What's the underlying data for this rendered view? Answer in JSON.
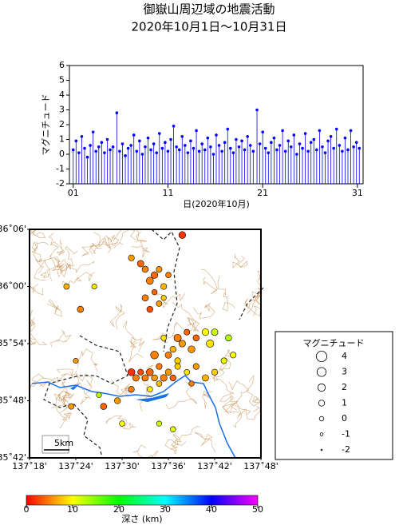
{
  "chart_data": [
    {
      "type": "stem",
      "title": "御嶽山周辺域の地震活動",
      "subtitle": "2020年10月1日～10月31日",
      "xlabel": "日(2020年10月)",
      "ylabel": "マグニチュード",
      "color": "#0000ff",
      "xlim": [
        0.6,
        31.6
      ],
      "xticks": [
        {
          "value": 1,
          "label": "01"
        },
        11,
        21,
        31
      ],
      "ylim": [
        -2,
        6
      ],
      "yticks": [
        -2,
        -1,
        0,
        1,
        2,
        3,
        4,
        5,
        6
      ],
      "x": [
        1.0,
        1.3,
        1.6,
        1.9,
        2.2,
        2.5,
        2.8,
        3.1,
        3.4,
        3.7,
        4.0,
        4.3,
        4.6,
        4.9,
        5.2,
        5.6,
        5.9,
        6.2,
        6.5,
        6.8,
        7.1,
        7.4,
        7.7,
        8.0,
        8.3,
        8.6,
        8.9,
        9.2,
        9.5,
        9.8,
        10.1,
        10.4,
        10.7,
        11.0,
        11.3,
        11.6,
        11.9,
        12.2,
        12.5,
        12.8,
        13.1,
        13.4,
        13.7,
        14.0,
        14.3,
        14.6,
        14.9,
        15.2,
        15.5,
        15.8,
        16.1,
        16.4,
        16.7,
        17.0,
        17.3,
        17.6,
        17.9,
        18.2,
        18.5,
        18.8,
        19.1,
        19.4,
        19.7,
        20.0,
        20.4,
        20.7,
        21.0,
        21.3,
        21.6,
        21.9,
        22.2,
        22.5,
        22.8,
        23.1,
        23.4,
        23.7,
        24.0,
        24.3,
        24.6,
        24.9,
        25.2,
        25.5,
        25.8,
        26.1,
        26.4,
        26.7,
        27.0,
        27.3,
        27.6,
        27.9,
        28.2,
        28.5,
        28.8,
        29.1,
        29.4,
        29.7,
        30.0,
        30.3,
        30.6,
        30.9,
        31.2
      ],
      "values": [
        0.3,
        0.9,
        0.1,
        1.2,
        0.4,
        -0.2,
        0.6,
        1.5,
        0.2,
        0.5,
        0.8,
        0.1,
        1.0,
        0.3,
        0.5,
        2.8,
        0.2,
        0.7,
        -0.1,
        0.4,
        0.6,
        1.3,
        0.2,
        0.9,
        0.0,
        0.5,
        1.1,
        0.3,
        0.7,
        0.1,
        1.4,
        0.4,
        0.8,
        0.2,
        1.0,
        1.9,
        0.5,
        0.3,
        1.2,
        0.6,
        0.1,
        0.9,
        0.4,
        1.6,
        0.2,
        0.7,
        0.3,
        1.1,
        0.5,
        0.0,
        1.3,
        0.6,
        0.2,
        0.8,
        1.7,
        0.4,
        0.1,
        1.0,
        0.5,
        0.9,
        0.3,
        1.2,
        0.6,
        0.2,
        3.0,
        0.7,
        1.5,
        0.4,
        0.1,
        0.8,
        1.1,
        0.3,
        0.6,
        1.6,
        0.2,
        0.9,
        0.5,
        1.3,
        0.0,
        0.7,
        0.4,
        1.4,
        0.2,
        0.8,
        1.0,
        0.3,
        1.6,
        0.5,
        0.1,
        0.9,
        1.2,
        0.4,
        1.7,
        0.6,
        0.2,
        1.1,
        0.3,
        1.6,
        0.5,
        0.8,
        0.4
      ]
    },
    {
      "type": "epicenter_map",
      "xlim": [
        137.3,
        137.8
      ],
      "xticks": [
        {
          "value": 137.3,
          "label": "137˚18'"
        },
        {
          "value": 137.4,
          "label": "137˚24'"
        },
        {
          "value": 137.5,
          "label": "137˚30'"
        },
        {
          "value": 137.6,
          "label": "137˚36'"
        },
        {
          "value": 137.7,
          "label": "137˚42'"
        },
        {
          "value": 137.8,
          "label": "137˚48'"
        }
      ],
      "ylim": [
        35.7,
        36.1
      ],
      "yticks": [
        {
          "value": 35.7,
          "label": "35˚42'"
        },
        {
          "value": 35.8,
          "label": "35˚48'"
        },
        {
          "value": 35.9,
          "label": "35˚54'"
        },
        {
          "value": 36.0,
          "label": "36˚00'"
        },
        {
          "value": 36.1,
          "label": "36˚06'"
        }
      ],
      "scale_label": "5km",
      "x": [
        137.55,
        137.57,
        137.58,
        137.56,
        137.59,
        137.57,
        137.55,
        137.58,
        137.56,
        137.59,
        137.54,
        137.6,
        137.52,
        137.63,
        137.38,
        137.41,
        137.44,
        137.62,
        137.63,
        137.61,
        137.64,
        137.6,
        137.62,
        137.65,
        137.59,
        137.66,
        137.68,
        137.7,
        137.73,
        137.58,
        137.56,
        137.55,
        137.57,
        137.54,
        137.53,
        137.58,
        137.6,
        137.59,
        137.62,
        137.61,
        137.64,
        137.66,
        137.68,
        137.7,
        137.72,
        137.74,
        137.65,
        137.56,
        137.52,
        137.49,
        137.46,
        137.5,
        137.58,
        137.61,
        137.4,
        137.52,
        137.57,
        137.69,
        137.39,
        137.45
      ],
      "values": [
        36.03,
        36.02,
        36.03,
        36.01,
        36.0,
        35.99,
        35.98,
        35.97,
        35.96,
        35.98,
        36.04,
        36.02,
        36.05,
        36.09,
        36.0,
        35.96,
        36.0,
        35.91,
        35.9,
        35.89,
        35.92,
        35.88,
        35.87,
        35.89,
        35.91,
        35.91,
        35.92,
        35.92,
        35.91,
        35.86,
        35.85,
        35.84,
        35.84,
        35.85,
        35.84,
        35.83,
        35.85,
        35.84,
        35.86,
        35.84,
        35.85,
        35.86,
        35.84,
        35.85,
        35.87,
        35.88,
        35.83,
        35.82,
        35.82,
        35.8,
        35.79,
        35.76,
        35.76,
        35.75,
        35.87,
        35.85,
        35.88,
        35.9,
        35.79,
        35.81
      ],
      "magnitudes": [
        1.2,
        1.5,
        0.9,
        1.8,
        1.0,
        0.6,
        1.3,
        0.8,
        1.1,
        0.5,
        1.4,
        0.7,
        1.0,
        1.6,
        0.8,
        1.2,
        0.5,
        1.9,
        1.5,
        1.1,
        0.9,
        1.3,
        1.0,
        1.6,
        0.7,
        1.2,
        1.5,
        1.4,
        1.2,
        1.0,
        1.7,
        1.3,
        1.1,
        0.9,
        1.4,
        0.8,
        1.2,
        1.5,
        0.9,
        1.1,
        0.7,
        1.0,
        1.3,
        1.1,
        0.9,
        1.0,
        0.6,
        0.8,
        1.0,
        1.1,
        1.2,
        0.6,
        0.5,
        0.7,
        0.4,
        1.8,
        2.2,
        2.0,
        0.8,
        0.5
      ],
      "depths": [
        5,
        4,
        6,
        5,
        7,
        4,
        5,
        6,
        3,
        8,
        4,
        5,
        6,
        2,
        7,
        5,
        9,
        5,
        6,
        7,
        4,
        5,
        8,
        6,
        9,
        4,
        10,
        12,
        13,
        5,
        4,
        5,
        6,
        3,
        5,
        7,
        6,
        5,
        8,
        4,
        9,
        6,
        7,
        8,
        11,
        10,
        5,
        9,
        5,
        6,
        4,
        10,
        12,
        11,
        6,
        2,
        5,
        9,
        6,
        13
      ],
      "legend": {
        "title": "マグニチュード",
        "magnitudes": [
          4,
          3,
          2,
          1,
          0,
          -1,
          -2
        ]
      },
      "colorbar": {
        "label": "深さ (km)",
        "zlim": [
          0,
          50
        ],
        "zticks": [
          0,
          10,
          20,
          30,
          40,
          50
        ],
        "colormap": [
          "#ff0000",
          "#ffff00",
          "#00ff00",
          "#00ffff",
          "#0000ff",
          "#ff00ff"
        ]
      }
    }
  ]
}
